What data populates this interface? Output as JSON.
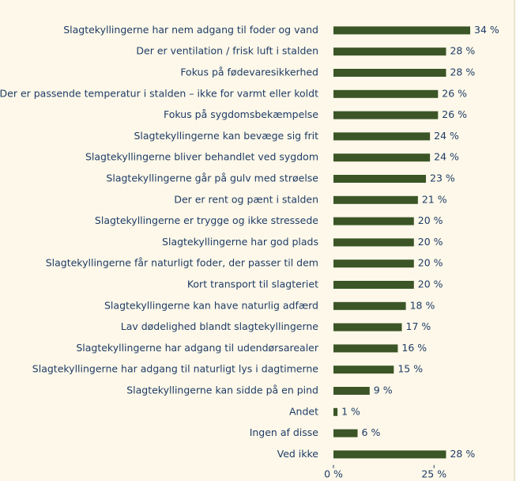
{
  "chart_data": {
    "type": "bar",
    "orientation": "horizontal",
    "categories": [
      "Slagtekyllingerne har nem adgang til foder og vand",
      "Der er ventilation / frisk luft i stalden",
      "Fokus på fødevaresikkerhed",
      "Der er passende temperatur i stalden – ikke for varmt eller koldt",
      "Fokus på sygdomsbekæmpelse",
      "Slagtekyllingerne kan bevæge sig frit",
      "Slagtekyllingerne bliver behandlet ved sygdom",
      "Slagtekyllingerne går på gulv med strøelse",
      "Der er rent og pænt i stalden",
      "Slagtekyllingerne er trygge og ikke stressede",
      "Slagtekyllingerne har god plads",
      "Slagtekyllingerne får naturligt foder, der passer til dem",
      "Kort transport til slagteriet",
      "Slagtekyllingerne kan have naturlig adfærd",
      "Lav dødelighed blandt slagtekyllingerne",
      "Slagtekyllingerne har adgang til udendørsarealer",
      "Slagtekyllingerne har adgang til naturligt lys i dagtimerne",
      "Slagtekyllingerne kan sidde på en pind",
      "Andet",
      "Ingen af disse",
      "Ved ikke"
    ],
    "values": [
      34,
      28,
      28,
      26,
      26,
      24,
      24,
      23,
      21,
      20,
      20,
      20,
      20,
      18,
      17,
      16,
      15,
      9,
      1,
      6,
      28
    ],
    "value_labels": [
      "34 %",
      "28 %",
      "28 %",
      "26 %",
      "26 %",
      "24 %",
      "24 %",
      "23 %",
      "21 %",
      "20 %",
      "20 %",
      "20 %",
      "20 %",
      "18 %",
      "17 %",
      "16 %",
      "15 %",
      "9 %",
      "1 %",
      "6 %",
      "28 %"
    ],
    "color": "#3b5527",
    "xlim": [
      0,
      45
    ],
    "xticks": [
      {
        "value": 0,
        "label": "0 %"
      },
      {
        "value": 25,
        "label": "25 %"
      }
    ]
  }
}
